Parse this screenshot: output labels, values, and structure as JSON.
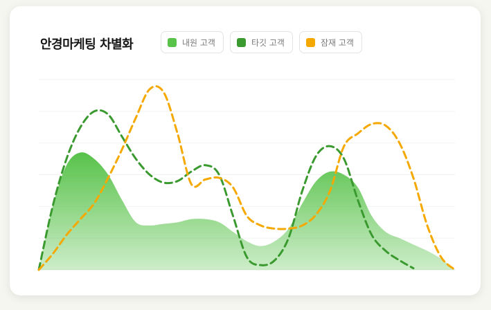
{
  "card": {
    "title": "안경마케팅 차별화"
  },
  "legend": [
    {
      "label": "내원 고객",
      "color": "#58c24a"
    },
    {
      "label": "타깃 고객",
      "color": "#3a9a2f"
    },
    {
      "label": "잠재 고객",
      "color": "#f5a800"
    }
  ],
  "chart_data": {
    "type": "area",
    "title": "안경마케팅 차별화",
    "xlabel": "",
    "ylabel": "",
    "x": [
      0,
      1,
      2,
      3,
      4,
      5,
      6,
      7,
      8,
      9,
      10,
      11,
      12,
      13,
      14,
      15,
      16,
      17,
      18,
      19,
      20,
      21,
      22,
      23,
      24,
      25,
      26,
      27,
      28,
      29,
      30
    ],
    "ylim": [
      0,
      6
    ],
    "grid": true,
    "legend_position": "top",
    "series": [
      {
        "name": "내원 고객",
        "style": "filled-area",
        "color": "#58c24a",
        "values": [
          0,
          2.0,
          3.3,
          3.7,
          3.5,
          3.0,
          2.2,
          1.5,
          1.4,
          1.45,
          1.5,
          1.6,
          1.6,
          1.5,
          1.2,
          0.9,
          0.75,
          0.9,
          1.3,
          2.1,
          2.8,
          3.1,
          3.0,
          2.6,
          1.7,
          1.2,
          1.0,
          0.8,
          0.6,
          0.35,
          0
        ]
      },
      {
        "name": "타깃 고객",
        "style": "dashed-line",
        "color": "#3a9a2f",
        "values": [
          0,
          2.0,
          3.5,
          4.5,
          5.0,
          4.9,
          4.2,
          3.5,
          3.0,
          2.75,
          2.8,
          3.1,
          3.3,
          3.0,
          1.7,
          0.4,
          0.15,
          0.3,
          1.0,
          2.5,
          3.6,
          3.9,
          3.5,
          2.2,
          1.1,
          0.6,
          0.3,
          0.05,
          null,
          null,
          null
        ]
      },
      {
        "name": "잠재 고객",
        "style": "dashed-line",
        "color": "#f5a800",
        "values": [
          0,
          0.5,
          1.1,
          1.6,
          2.1,
          2.9,
          3.8,
          4.8,
          5.7,
          5.6,
          4.3,
          2.7,
          2.85,
          2.9,
          2.6,
          1.7,
          1.4,
          1.3,
          1.3,
          1.4,
          1.75,
          2.5,
          3.9,
          4.3,
          4.6,
          4.55,
          4.0,
          2.9,
          1.4,
          0.4,
          0
        ]
      }
    ]
  }
}
